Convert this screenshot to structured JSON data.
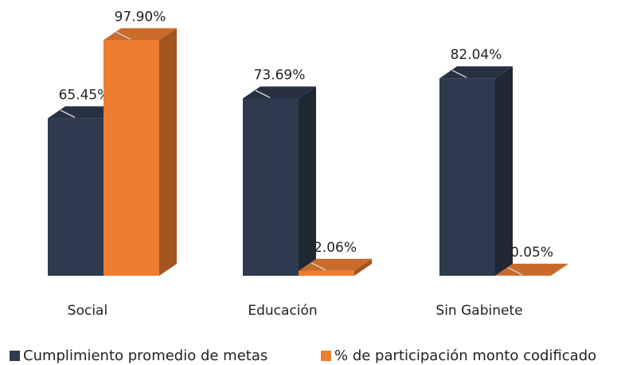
{
  "chart_data": {
    "type": "bar3d",
    "categories": [
      "Social",
      "Educación",
      "Sin Gabinete"
    ],
    "series": [
      {
        "name": "Cumplimiento promedio de metas",
        "color": "#2e3a4e",
        "values": [
          65.45,
          73.69,
          82.04
        ],
        "value_labels": [
          "65.45%",
          "73.69%",
          "82.04%"
        ]
      },
      {
        "name": "% de participación monto codificado",
        "color": "#ed7d31",
        "values": [
          97.9,
          2.06,
          0.05
        ],
        "value_labels": [
          "97.90%",
          "2.06%",
          "0.05%"
        ]
      }
    ],
    "legend": "bottom"
  }
}
